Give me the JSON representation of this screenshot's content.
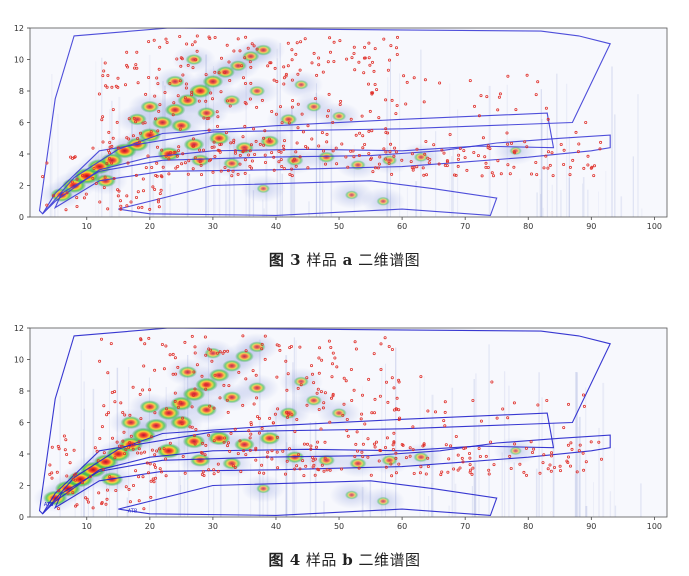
{
  "chart_data": [
    {
      "type": "heatmap",
      "figure_label": "图 3",
      "title_prefix": "样品",
      "sample": "a",
      "title_suffix": "二维谱图",
      "xlim": [
        1,
        102
      ],
      "ylim": [
        0,
        12
      ],
      "x_ticks": [
        10,
        20,
        30,
        40,
        50,
        60,
        70,
        80,
        90,
        100
      ],
      "y_ticks": [
        0,
        2,
        4,
        6,
        8,
        10,
        12
      ],
      "colors": {
        "outline": "#3b3bd6",
        "peak_marker": "#e0302a",
        "background_streak": "#9aa6d8"
      },
      "annotations": [],
      "regions": [
        {
          "points": [
            [
              2.5,
              0.4
            ],
            [
              5,
              7.5
            ],
            [
              8,
              11.5
            ],
            [
              23,
              12
            ],
            [
              82,
              11.8
            ],
            [
              88,
              11.5
            ],
            [
              93,
              11
            ],
            [
              87,
              6
            ],
            [
              60,
              5.6
            ],
            [
              30,
              5.4
            ],
            [
              12,
              4.2
            ],
            [
              5,
              1.5
            ],
            [
              3,
              0.2
            ]
          ]
        },
        {
          "points": [
            [
              3,
              0.2
            ],
            [
              8,
              2.5
            ],
            [
              15,
              4.3
            ],
            [
              22,
              5.3
            ],
            [
              40,
              5.8
            ],
            [
              60,
              6.2
            ],
            [
              83,
              6.6
            ],
            [
              84,
              4.4
            ],
            [
              72,
              4.5
            ],
            [
              60,
              4.2
            ],
            [
              45,
              4.3
            ],
            [
              30,
              4.2
            ],
            [
              20,
              3.8
            ],
            [
              12,
              3.0
            ],
            [
              5,
              1.0
            ]
          ]
        },
        {
          "points": [
            [
              5,
              0.6
            ],
            [
              12,
              2.3
            ],
            [
              22,
              2.9
            ],
            [
              40,
              3.0
            ],
            [
              60,
              3.2
            ],
            [
              70,
              3.5
            ],
            [
              80,
              3.8
            ],
            [
              90,
              4.2
            ],
            [
              93,
              4.4
            ],
            [
              93,
              5.2
            ],
            [
              85,
              5.0
            ],
            [
              75,
              4.7
            ],
            [
              66,
              4.2
            ],
            [
              55,
              3.9
            ],
            [
              38,
              3.8
            ],
            [
              22,
              3.6
            ],
            [
              12,
              2.9
            ],
            [
              6,
              1.5
            ]
          ]
        },
        {
          "points": [
            [
              15,
              0.5
            ],
            [
              30,
              2.0
            ],
            [
              55,
              2.3
            ],
            [
              65,
              1.8
            ],
            [
              75,
              1.2
            ],
            [
              74,
              0.1
            ],
            [
              60,
              0.5
            ],
            [
              40,
              0.1
            ],
            [
              20,
              0.2
            ]
          ]
        }
      ],
      "peak_bands": [
        {
          "x0": 3,
          "x1": 22,
          "y0": 0.4,
          "y1": 5.2,
          "count": 70
        },
        {
          "x0": 12,
          "x1": 60,
          "y0": 4.0,
          "y1": 11.5,
          "count": 260
        },
        {
          "x0": 20,
          "x1": 92,
          "y0": 2.6,
          "y1": 4.8,
          "count": 180
        },
        {
          "x0": 55,
          "x1": 90,
          "y0": 5.0,
          "y1": 9.0,
          "count": 30
        }
      ],
      "hot_spots": [
        {
          "x": 8,
          "y": 2.0,
          "intensity": 0.9
        },
        {
          "x": 10,
          "y": 2.6,
          "intensity": 1.0
        },
        {
          "x": 12,
          "y": 3.2,
          "intensity": 0.9
        },
        {
          "x": 14,
          "y": 3.6,
          "intensity": 0.8
        },
        {
          "x": 16,
          "y": 4.2,
          "intensity": 0.9
        },
        {
          "x": 18,
          "y": 4.6,
          "intensity": 0.8
        },
        {
          "x": 20,
          "y": 5.2,
          "intensity": 0.8
        },
        {
          "x": 22,
          "y": 6.0,
          "intensity": 0.7
        },
        {
          "x": 24,
          "y": 6.8,
          "intensity": 0.7
        },
        {
          "x": 26,
          "y": 7.4,
          "intensity": 0.7
        },
        {
          "x": 28,
          "y": 8.0,
          "intensity": 0.8
        },
        {
          "x": 30,
          "y": 8.6,
          "intensity": 0.7
        },
        {
          "x": 32,
          "y": 9.2,
          "intensity": 0.6
        },
        {
          "x": 34,
          "y": 9.6,
          "intensity": 0.5
        },
        {
          "x": 36,
          "y": 10.2,
          "intensity": 0.5
        },
        {
          "x": 38,
          "y": 10.6,
          "intensity": 0.5
        },
        {
          "x": 24,
          "y": 8.6,
          "intensity": 0.6
        },
        {
          "x": 27,
          "y": 10.0,
          "intensity": 0.5
        },
        {
          "x": 20,
          "y": 7.0,
          "intensity": 0.6
        },
        {
          "x": 18,
          "y": 6.2,
          "intensity": 0.6
        },
        {
          "x": 23,
          "y": 4.0,
          "intensity": 0.8
        },
        {
          "x": 27,
          "y": 4.6,
          "intensity": 0.7
        },
        {
          "x": 31,
          "y": 5.0,
          "intensity": 0.7
        },
        {
          "x": 35,
          "y": 4.4,
          "intensity": 0.6
        },
        {
          "x": 39,
          "y": 4.8,
          "intensity": 0.6
        },
        {
          "x": 28,
          "y": 3.6,
          "intensity": 0.6
        },
        {
          "x": 33,
          "y": 3.4,
          "intensity": 0.5
        },
        {
          "x": 43,
          "y": 3.6,
          "intensity": 0.5
        },
        {
          "x": 48,
          "y": 3.8,
          "intensity": 0.5
        },
        {
          "x": 53,
          "y": 3.3,
          "intensity": 0.4
        },
        {
          "x": 58,
          "y": 3.6,
          "intensity": 0.4
        },
        {
          "x": 63,
          "y": 3.8,
          "intensity": 0.35
        },
        {
          "x": 42,
          "y": 6.2,
          "intensity": 0.5
        },
        {
          "x": 46,
          "y": 7.0,
          "intensity": 0.4
        },
        {
          "x": 50,
          "y": 6.4,
          "intensity": 0.35
        },
        {
          "x": 44,
          "y": 8.4,
          "intensity": 0.35
        },
        {
          "x": 6,
          "y": 1.4,
          "intensity": 0.8
        },
        {
          "x": 13,
          "y": 2.3,
          "intensity": 0.7
        },
        {
          "x": 25,
          "y": 5.8,
          "intensity": 0.7
        },
        {
          "x": 29,
          "y": 6.6,
          "intensity": 0.6
        },
        {
          "x": 33,
          "y": 7.4,
          "intensity": 0.5
        },
        {
          "x": 37,
          "y": 8.0,
          "intensity": 0.45
        },
        {
          "x": 52,
          "y": 1.4,
          "intensity": 0.3
        },
        {
          "x": 57,
          "y": 1.0,
          "intensity": 0.3
        },
        {
          "x": 38,
          "y": 1.8,
          "intensity": 0.3
        },
        {
          "x": 78,
          "y": 4.2,
          "intensity": 0.25
        }
      ]
    },
    {
      "type": "heatmap",
      "figure_label": "图 4",
      "title_prefix": "样品",
      "sample": "b",
      "title_suffix": "二维谱图",
      "xlim": [
        1,
        102
      ],
      "ylim": [
        0,
        12
      ],
      "x_ticks": [
        10,
        20,
        30,
        40,
        50,
        60,
        70,
        80,
        90,
        100
      ],
      "y_ticks": [
        0,
        2,
        4,
        6,
        8,
        10,
        12
      ],
      "colors": {
        "outline": "#2222cc",
        "peak_marker": "#e0302a",
        "background_streak": "#8f9cd4"
      },
      "annotations": [
        {
          "x": 3.2,
          "y": 0.7,
          "text": "ATB"
        },
        {
          "x": 16.5,
          "y": 0.3,
          "text": "ATB"
        }
      ],
      "regions": [
        {
          "points": [
            [
              2.5,
              0.4
            ],
            [
              5,
              7.5
            ],
            [
              8,
              11.5
            ],
            [
              23,
              12
            ],
            [
              82,
              11.8
            ],
            [
              88,
              11.5
            ],
            [
              93,
              11
            ],
            [
              87,
              6
            ],
            [
              60,
              5.6
            ],
            [
              30,
              5.4
            ],
            [
              12,
              4.2
            ],
            [
              5,
              1.5
            ],
            [
              3,
              0.2
            ]
          ]
        },
        {
          "points": [
            [
              3,
              0.2
            ],
            [
              8,
              2.5
            ],
            [
              15,
              4.3
            ],
            [
              22,
              5.3
            ],
            [
              40,
              5.8
            ],
            [
              60,
              6.2
            ],
            [
              83,
              6.6
            ],
            [
              84,
              4.4
            ],
            [
              72,
              4.5
            ],
            [
              60,
              4.2
            ],
            [
              45,
              4.3
            ],
            [
              30,
              4.2
            ],
            [
              20,
              3.8
            ],
            [
              12,
              3.0
            ],
            [
              5,
              1.0
            ]
          ]
        },
        {
          "points": [
            [
              5,
              0.6
            ],
            [
              12,
              2.3
            ],
            [
              22,
              2.9
            ],
            [
              40,
              3.0
            ],
            [
              60,
              3.2
            ],
            [
              70,
              3.5
            ],
            [
              80,
              3.8
            ],
            [
              90,
              4.2
            ],
            [
              93,
              4.4
            ],
            [
              93,
              5.2
            ],
            [
              85,
              5.0
            ],
            [
              75,
              4.7
            ],
            [
              66,
              4.2
            ],
            [
              55,
              3.9
            ],
            [
              38,
              3.8
            ],
            [
              22,
              3.6
            ],
            [
              12,
              2.9
            ],
            [
              6,
              1.5
            ]
          ]
        },
        {
          "points": [
            [
              15,
              0.5
            ],
            [
              30,
              2.0
            ],
            [
              55,
              2.3
            ],
            [
              65,
              1.8
            ],
            [
              75,
              1.2
            ],
            [
              74,
              0.1
            ],
            [
              60,
              0.5
            ],
            [
              40,
              0.1
            ],
            [
              20,
              0.2
            ]
          ]
        }
      ],
      "peak_bands": [
        {
          "x0": 3,
          "x1": 22,
          "y0": 0.4,
          "y1": 5.2,
          "count": 80
        },
        {
          "x0": 12,
          "x1": 60,
          "y0": 4.0,
          "y1": 11.5,
          "count": 220
        },
        {
          "x0": 20,
          "x1": 92,
          "y0": 2.6,
          "y1": 4.8,
          "count": 170
        },
        {
          "x0": 55,
          "x1": 90,
          "y0": 5.0,
          "y1": 9.0,
          "count": 25
        }
      ],
      "hot_spots": [
        {
          "x": 7,
          "y": 1.8,
          "intensity": 1.0
        },
        {
          "x": 9,
          "y": 2.4,
          "intensity": 1.0
        },
        {
          "x": 11,
          "y": 3.0,
          "intensity": 1.0
        },
        {
          "x": 13,
          "y": 3.5,
          "intensity": 0.9
        },
        {
          "x": 15,
          "y": 4.0,
          "intensity": 0.9
        },
        {
          "x": 17,
          "y": 4.6,
          "intensity": 0.9
        },
        {
          "x": 19,
          "y": 5.2,
          "intensity": 0.9
        },
        {
          "x": 21,
          "y": 5.8,
          "intensity": 0.8
        },
        {
          "x": 23,
          "y": 6.6,
          "intensity": 0.8
        },
        {
          "x": 25,
          "y": 7.2,
          "intensity": 0.8
        },
        {
          "x": 27,
          "y": 7.8,
          "intensity": 0.8
        },
        {
          "x": 29,
          "y": 8.4,
          "intensity": 0.8
        },
        {
          "x": 31,
          "y": 9.0,
          "intensity": 0.7
        },
        {
          "x": 33,
          "y": 9.6,
          "intensity": 0.6
        },
        {
          "x": 35,
          "y": 10.2,
          "intensity": 0.6
        },
        {
          "x": 37,
          "y": 10.8,
          "intensity": 0.5
        },
        {
          "x": 26,
          "y": 9.2,
          "intensity": 0.6
        },
        {
          "x": 30,
          "y": 10.4,
          "intensity": 0.5
        },
        {
          "x": 20,
          "y": 7.0,
          "intensity": 0.7
        },
        {
          "x": 17,
          "y": 6.0,
          "intensity": 0.7
        },
        {
          "x": 23,
          "y": 4.2,
          "intensity": 0.9
        },
        {
          "x": 27,
          "y": 4.8,
          "intensity": 0.8
        },
        {
          "x": 31,
          "y": 5.0,
          "intensity": 0.8
        },
        {
          "x": 35,
          "y": 4.6,
          "intensity": 0.7
        },
        {
          "x": 39,
          "y": 5.0,
          "intensity": 0.7
        },
        {
          "x": 28,
          "y": 3.6,
          "intensity": 0.7
        },
        {
          "x": 33,
          "y": 3.4,
          "intensity": 0.6
        },
        {
          "x": 43,
          "y": 3.8,
          "intensity": 0.6
        },
        {
          "x": 48,
          "y": 3.6,
          "intensity": 0.5
        },
        {
          "x": 53,
          "y": 3.4,
          "intensity": 0.5
        },
        {
          "x": 58,
          "y": 3.6,
          "intensity": 0.45
        },
        {
          "x": 63,
          "y": 3.8,
          "intensity": 0.4
        },
        {
          "x": 42,
          "y": 6.6,
          "intensity": 0.55
        },
        {
          "x": 46,
          "y": 7.4,
          "intensity": 0.45
        },
        {
          "x": 50,
          "y": 6.6,
          "intensity": 0.4
        },
        {
          "x": 44,
          "y": 8.6,
          "intensity": 0.4
        },
        {
          "x": 5,
          "y": 1.2,
          "intensity": 0.9
        },
        {
          "x": 14,
          "y": 2.4,
          "intensity": 0.8
        },
        {
          "x": 25,
          "y": 6.0,
          "intensity": 0.8
        },
        {
          "x": 29,
          "y": 6.8,
          "intensity": 0.7
        },
        {
          "x": 33,
          "y": 7.6,
          "intensity": 0.6
        },
        {
          "x": 37,
          "y": 8.2,
          "intensity": 0.55
        },
        {
          "x": 52,
          "y": 1.4,
          "intensity": 0.3
        },
        {
          "x": 57,
          "y": 1.0,
          "intensity": 0.3
        },
        {
          "x": 38,
          "y": 1.8,
          "intensity": 0.35
        },
        {
          "x": 78,
          "y": 4.2,
          "intensity": 0.25
        }
      ]
    }
  ]
}
